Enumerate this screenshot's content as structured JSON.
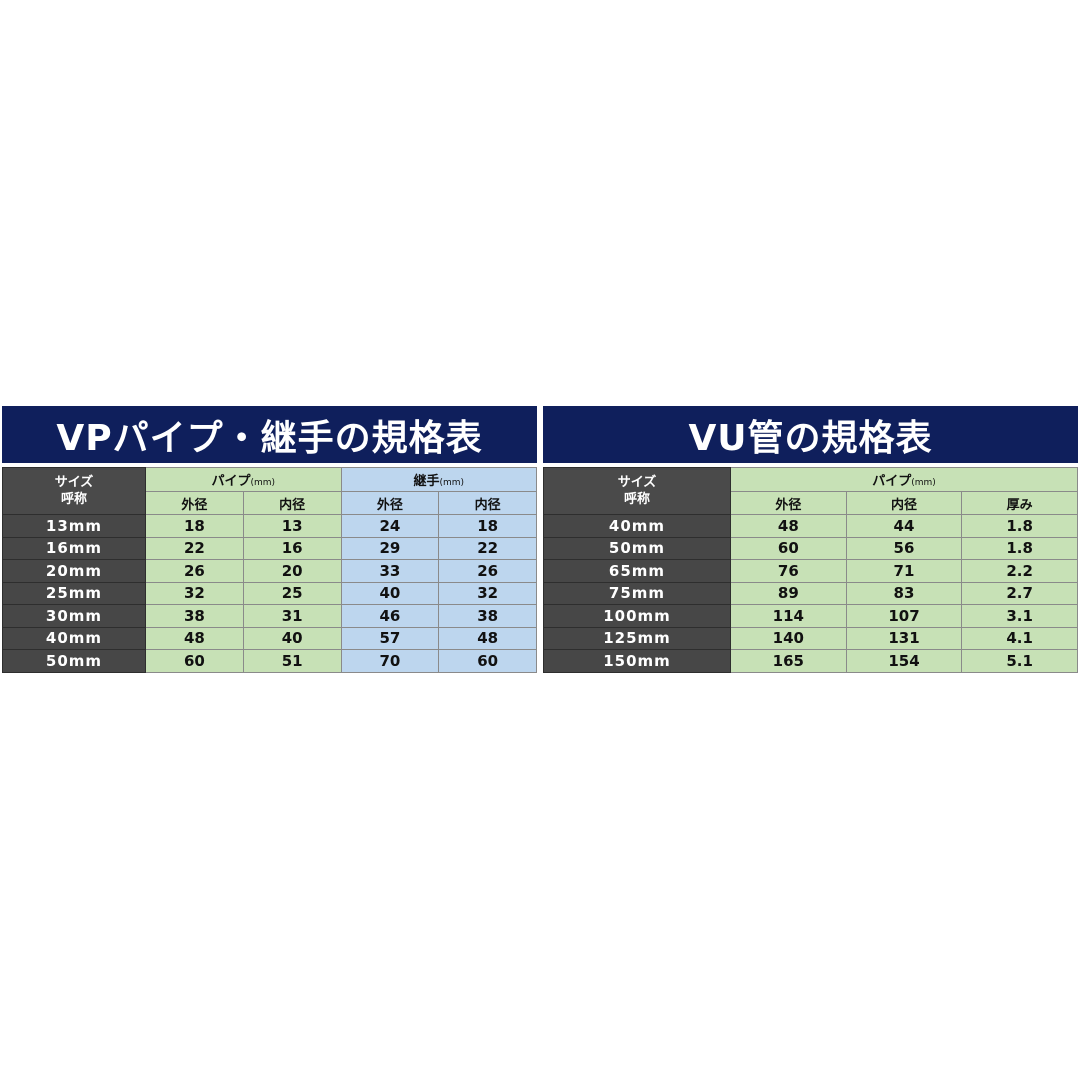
{
  "vp": {
    "title": "VPパイプ・継手の規格表",
    "size_label_1": "サイズ",
    "size_label_2": "呼称",
    "pipe_group": "パイプ",
    "joint_group": "継手",
    "unit": "(mm)",
    "columns": [
      "外径",
      "内径",
      "外径",
      "内径"
    ],
    "rows": [
      [
        "13mm",
        "18",
        "13",
        "24",
        "18"
      ],
      [
        "16mm",
        "22",
        "16",
        "29",
        "22"
      ],
      [
        "20mm",
        "26",
        "20",
        "33",
        "26"
      ],
      [
        "25mm",
        "32",
        "25",
        "40",
        "32"
      ],
      [
        "30mm",
        "38",
        "31",
        "46",
        "38"
      ],
      [
        "40mm",
        "48",
        "40",
        "57",
        "48"
      ],
      [
        "50mm",
        "60",
        "51",
        "70",
        "60"
      ]
    ]
  },
  "vu": {
    "title": "VU管の規格表",
    "size_label_1": "サイズ",
    "size_label_2": "呼称",
    "pipe_group": "パイプ",
    "unit": "(mm)",
    "columns": [
      "外径",
      "内径",
      "厚み"
    ],
    "rows": [
      [
        "40mm",
        "48",
        "44",
        "1.8"
      ],
      [
        "50mm",
        "60",
        "56",
        "1.8"
      ],
      [
        "65mm",
        "76",
        "71",
        "2.2"
      ],
      [
        "75mm",
        "89",
        "83",
        "2.7"
      ],
      [
        "100mm",
        "114",
        "107",
        "3.1"
      ],
      [
        "125mm",
        "140",
        "131",
        "4.1"
      ],
      [
        "150mm",
        "165",
        "154",
        "5.1"
      ]
    ]
  },
  "colors": {
    "title_bg": "#0f1f5c",
    "label_bg": "#474747",
    "pipe_bg": "#c7e1b6",
    "joint_bg": "#bdd6ee"
  }
}
